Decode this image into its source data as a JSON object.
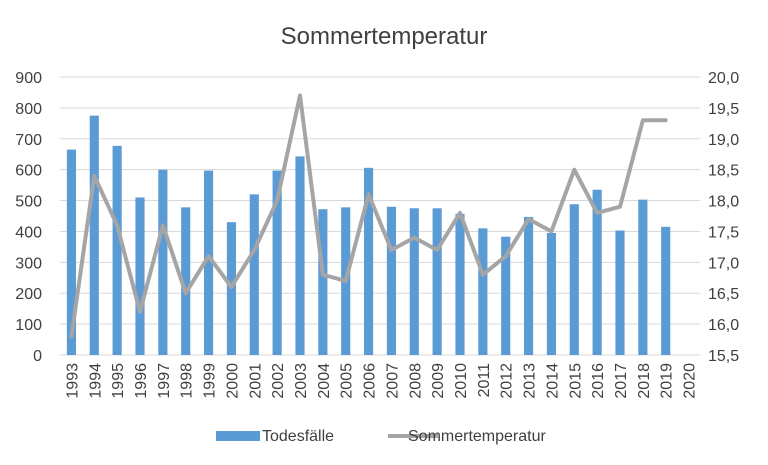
{
  "chart_data": {
    "type": "bar",
    "title": "Sommertemperatur",
    "categories": [
      "1993",
      "1994",
      "1995",
      "1996",
      "1997",
      "1998",
      "1999",
      "2000",
      "2001",
      "2002",
      "2003",
      "2004",
      "2005",
      "2006",
      "2007",
      "2008",
      "2009",
      "2010",
      "2011",
      "2012",
      "2013",
      "2014",
      "2015",
      "2016",
      "2017",
      "2018",
      "2019",
      "2020"
    ],
    "series": [
      {
        "name": "Todesfälle",
        "type": "bar",
        "axis": "left",
        "color": "#5b9bd5",
        "values": [
          665,
          775,
          677,
          510,
          600,
          478,
          597,
          430,
          520,
          597,
          643,
          472,
          478,
          606,
          480,
          475,
          475,
          457,
          410,
          383,
          447,
          395,
          488,
          535,
          403,
          503,
          415,
          null
        ]
      },
      {
        "name": "Sommertemperatur",
        "type": "line",
        "axis": "right",
        "color": "#a5a5a5",
        "values": [
          15.8,
          18.4,
          17.6,
          16.2,
          17.6,
          16.5,
          17.1,
          16.6,
          17.2,
          18.0,
          19.7,
          16.8,
          16.7,
          18.1,
          17.2,
          17.4,
          17.2,
          17.8,
          16.8,
          17.1,
          17.7,
          17.5,
          18.5,
          17.8,
          17.9,
          19.3,
          19.3,
          null
        ]
      }
    ],
    "y_left": {
      "ylim": [
        0,
        900
      ],
      "ticks": [
        "0",
        "100",
        "200",
        "300",
        "400",
        "500",
        "600",
        "700",
        "800",
        "900"
      ]
    },
    "y_right": {
      "ylim": [
        15.5,
        20.0
      ],
      "ticks": [
        "15,5",
        "16,0",
        "16,5",
        "17,0",
        "17,5",
        "18,0",
        "18,5",
        "19,0",
        "19,5",
        "20,0"
      ]
    },
    "grid": true,
    "legend_position": "bottom"
  }
}
